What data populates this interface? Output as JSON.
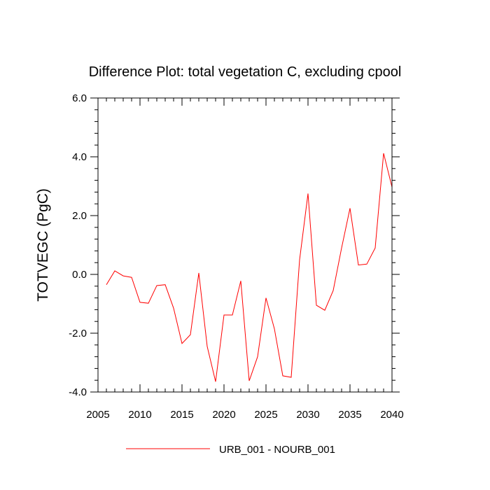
{
  "chart_data": {
    "type": "line",
    "title": "Difference Plot: total vegetation C, excluding cpool",
    "xlabel": "",
    "ylabel": "TOTVEGC  (PgC)",
    "xlim": [
      2005,
      2040
    ],
    "ylim": [
      -4.0,
      6.0
    ],
    "xticks": [
      2005,
      2010,
      2015,
      2020,
      2025,
      2030,
      2035,
      2040
    ],
    "xtick_labels": [
      "2005",
      "2010",
      "2015",
      "2020",
      "2025",
      "2030",
      "2035",
      "2040"
    ],
    "yticks": [
      -4,
      -2,
      0,
      2,
      4,
      6
    ],
    "ytick_labels": [
      "-4.0",
      "-2.0",
      "0.0",
      "2.0",
      "4.0",
      "6.0"
    ],
    "grid": false,
    "legend_position": "bottom",
    "series": [
      {
        "name": "URB_001 - NOURB_001",
        "color": "#ff0000",
        "x": [
          2006,
          2007,
          2008,
          2009,
          2010,
          2011,
          2012,
          2013,
          2014,
          2015,
          2016,
          2017,
          2018,
          2019,
          2020,
          2021,
          2022,
          2023,
          2024,
          2025,
          2026,
          2027,
          2028,
          2029,
          2030,
          2031,
          2032,
          2033,
          2034,
          2035,
          2036,
          2037,
          2038,
          2039,
          2040
        ],
        "values": [
          -0.35,
          0.12,
          -0.05,
          -0.1,
          -0.95,
          -0.98,
          -0.38,
          -0.35,
          -1.15,
          -2.35,
          -2.05,
          0.05,
          -2.45,
          -3.65,
          -1.38,
          -1.38,
          -0.22,
          -3.62,
          -2.8,
          -0.8,
          -1.85,
          -3.45,
          -3.5,
          0.5,
          2.75,
          -1.05,
          -1.22,
          -0.55,
          0.9,
          2.25,
          0.32,
          0.35,
          0.9,
          4.12,
          2.97
        ]
      }
    ]
  }
}
